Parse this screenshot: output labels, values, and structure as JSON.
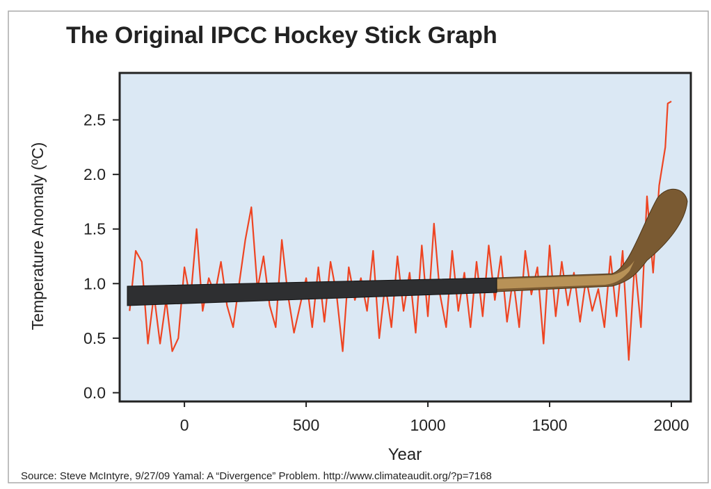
{
  "chart_data": {
    "type": "line",
    "title": "The Original IPCC Hockey Stick Graph",
    "x_label": "Year",
    "y_label": "Temperature Anomaly (ºC)",
    "source": "Source: Steve McIntyre, 9/27/09 Yamal: A “Divergence” Problem. http://www.climateaudit.org/?p=7168",
    "x": [
      -225,
      -200,
      -175,
      -150,
      -125,
      -100,
      -75,
      -50,
      -25,
      0,
      25,
      50,
      75,
      100,
      125,
      150,
      175,
      200,
      225,
      250,
      275,
      300,
      325,
      350,
      375,
      400,
      425,
      450,
      475,
      500,
      525,
      550,
      575,
      600,
      625,
      650,
      675,
      700,
      725,
      750,
      775,
      800,
      825,
      850,
      875,
      900,
      925,
      950,
      975,
      1000,
      1025,
      1050,
      1075,
      1100,
      1125,
      1150,
      1175,
      1200,
      1225,
      1250,
      1275,
      1300,
      1325,
      1350,
      1375,
      1400,
      1425,
      1450,
      1475,
      1500,
      1525,
      1550,
      1575,
      1600,
      1625,
      1650,
      1675,
      1700,
      1725,
      1750,
      1775,
      1800,
      1825,
      1850,
      1875,
      1900,
      1925,
      1950,
      1975,
      1985,
      2000
    ],
    "series": [
      {
        "color": "#ee4422",
        "values": [
          0.75,
          1.3,
          1.2,
          0.45,
          0.9,
          0.45,
          0.85,
          0.38,
          0.5,
          1.15,
          0.85,
          1.5,
          0.75,
          1.05,
          0.9,
          1.2,
          0.8,
          0.6,
          1.0,
          1.4,
          1.7,
          0.95,
          1.25,
          0.8,
          0.6,
          1.4,
          0.9,
          0.55,
          0.8,
          1.05,
          0.6,
          1.15,
          0.65,
          1.2,
          0.9,
          0.38,
          1.15,
          0.85,
          1.05,
          0.75,
          1.3,
          0.5,
          1.0,
          0.6,
          1.25,
          0.75,
          1.1,
          0.55,
          1.35,
          0.7,
          1.55,
          0.9,
          0.6,
          1.3,
          0.75,
          1.1,
          0.6,
          1.2,
          0.7,
          1.35,
          0.85,
          1.25,
          0.65,
          1.05,
          0.6,
          1.3,
          0.9,
          1.15,
          0.45,
          1.35,
          0.7,
          1.2,
          0.8,
          1.1,
          0.65,
          1.05,
          0.75,
          0.95,
          0.6,
          1.25,
          0.7,
          1.3,
          0.3,
          1.2,
          0.6,
          1.8,
          1.1,
          1.9,
          2.25,
          2.65,
          2.67
        ]
      }
    ],
    "xlim": [
      -266,
      2080
    ],
    "ylim": [
      -0.08,
      2.93
    ],
    "xticks": [
      0,
      500,
      1000,
      1500,
      2000
    ],
    "yticks": [
      {
        "value": 0,
        "label": "0.0"
      },
      0.5,
      {
        "value": 1,
        "label": "1.0"
      },
      1.5,
      {
        "value": 2,
        "label": "2.0"
      },
      2.5
    ]
  }
}
